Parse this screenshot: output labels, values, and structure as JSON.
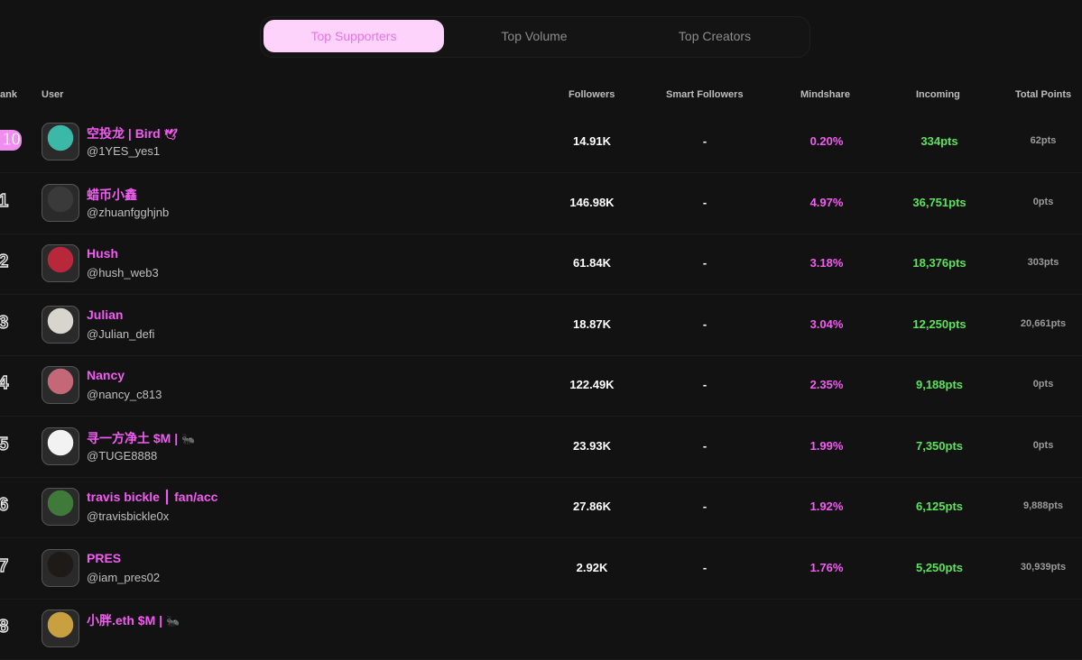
{
  "tabs": [
    {
      "label": "Top Supporters",
      "active": true
    },
    {
      "label": "Top Volume",
      "active": false
    },
    {
      "label": "Top Creators",
      "active": false
    }
  ],
  "columns": {
    "rank": "ank",
    "user": "User",
    "followers": "Followers",
    "smart_followers": "Smart Followers",
    "mindshare": "Mindshare",
    "incoming": "Incoming",
    "total_points": "Total Points"
  },
  "rows": [
    {
      "rank": "10",
      "name": "空投龙 | Bird",
      "emoji": "🕊",
      "handle": "@1YES_yes1",
      "followers": "14.91K",
      "smart": "-",
      "mindshare": "0.20%",
      "incoming": "334pts",
      "total": "62pts",
      "avatar_color": "#3cb8a8"
    },
    {
      "rank": "01",
      "name": "蜡币小鑫",
      "emoji": "",
      "handle": "@zhuanfgghjnb",
      "followers": "146.98K",
      "smart": "-",
      "mindshare": "4.97%",
      "incoming": "36,751pts",
      "total": "0pts",
      "avatar_color": "#3a3a3a"
    },
    {
      "rank": "02",
      "name": "Hush",
      "emoji": "",
      "handle": "@hush_web3",
      "followers": "61.84K",
      "smart": "-",
      "mindshare": "3.18%",
      "incoming": "18,376pts",
      "total": "303pts",
      "avatar_color": "#b8283a"
    },
    {
      "rank": "03",
      "name": "Julian",
      "emoji": "",
      "handle": "@Julian_defi",
      "followers": "18.87K",
      "smart": "-",
      "mindshare": "3.04%",
      "incoming": "12,250pts",
      "total": "20,661pts",
      "avatar_color": "#d8d4ce"
    },
    {
      "rank": "04",
      "name": "Nancy",
      "emoji": "",
      "handle": "@nancy_c813",
      "followers": "122.49K",
      "smart": "-",
      "mindshare": "2.35%",
      "incoming": "9,188pts",
      "total": "0pts",
      "avatar_color": "#c46878"
    },
    {
      "rank": "05",
      "name": "寻一方净土 $M |",
      "emoji": "🐜",
      "handle": "@TUGE8888",
      "followers": "23.93K",
      "smart": "-",
      "mindshare": "1.99%",
      "incoming": "7,350pts",
      "total": "0pts",
      "avatar_color": "#f2f2f2"
    },
    {
      "rank": "06",
      "name": "travis bickle ┃ fan/acc",
      "emoji": "",
      "handle": "@travisbickle0x",
      "followers": "27.86K",
      "smart": "-",
      "mindshare": "1.92%",
      "incoming": "6,125pts",
      "total": "9,888pts",
      "avatar_color": "#3f7a3a"
    },
    {
      "rank": "07",
      "name": "PRES",
      "emoji": "",
      "handle": "@iam_pres02",
      "followers": "2.92K",
      "smart": "-",
      "mindshare": "1.76%",
      "incoming": "5,250pts",
      "total": "30,939pts",
      "avatar_color": "#1e1a18"
    },
    {
      "rank": "08",
      "name": "小胖.eth $M |",
      "emoji": "🐜",
      "handle": "",
      "followers": "",
      "smart": "",
      "mindshare": "",
      "incoming": "",
      "total": "",
      "avatar_color": "#c8a040"
    }
  ]
}
